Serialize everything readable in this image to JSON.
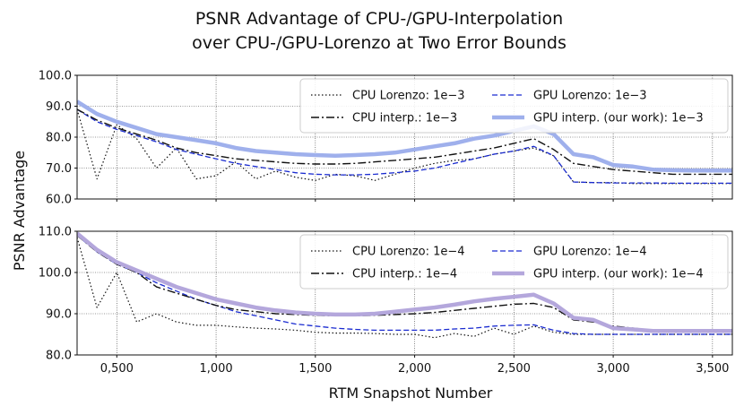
{
  "figure": {
    "title_line1": "PSNR Advantage of CPU-/GPU-Interpolation",
    "title_line2": "over CPU-/GPU-Lorenzo at Two Error Bounds",
    "xlabel": "RTM Snapshot Number",
    "ylabel": "PSNR Advantage"
  },
  "styles": {
    "cpu_lorenzo": {
      "color": "#111111",
      "dash": "1.5,2.5",
      "width": 1.2
    },
    "cpu_interp": {
      "color": "#111111",
      "dash": "9,3,2,3",
      "width": 1.4
    },
    "gpu_lorenzo": {
      "color": "#1a2bd0",
      "dash": "6,3",
      "width": 1.3
    },
    "gpu_interp_top": {
      "color": "#9fb0ec",
      "dash": "",
      "width": 4.5
    },
    "gpu_interp_bottom": {
      "color": "#b4a7dc",
      "dash": "",
      "width": 4.5
    }
  },
  "chart_data": [
    {
      "type": "line",
      "panel": "top",
      "title": "PSNR Advantage of CPU-/GPU-Interpolation over CPU-/GPU-Lorenzo at Two Error Bounds",
      "xlabel": "RTM Snapshot Number",
      "ylabel": "PSNR Advantage",
      "xlim": [
        300,
        3600
      ],
      "ylim": [
        60,
        100
      ],
      "yticks": [
        60,
        70,
        80,
        90,
        100
      ],
      "ytick_labels": [
        "60.0",
        "70.0",
        "80.0",
        "90.0",
        "100.0"
      ],
      "xticks": [
        500,
        1000,
        1500,
        2000,
        2500,
        3000,
        3500
      ],
      "xtick_labels": [
        "0,500",
        "1,000",
        "1,500",
        "2,000",
        "2,500",
        "3,000",
        "3,500"
      ],
      "grid": true,
      "legend": "top-right",
      "x": [
        300,
        400,
        500,
        600,
        700,
        800,
        900,
        1000,
        1100,
        1200,
        1300,
        1400,
        1500,
        1600,
        1700,
        1800,
        1900,
        2000,
        2100,
        2200,
        2300,
        2400,
        2500,
        2600,
        2700,
        2800,
        2900,
        3000,
        3100,
        3200,
        3300,
        3400,
        3500,
        3600
      ],
      "series": [
        {
          "name": "CPU Lorenzo: 1e−3",
          "style": "cpu_lorenzo",
          "values": [
            89,
            66.5,
            84,
            79.5,
            70,
            76.5,
            66.5,
            67.5,
            72,
            66.5,
            69,
            67,
            66,
            68,
            67.5,
            66,
            68,
            70,
            71.5,
            72.5,
            73,
            74.5,
            75.5,
            76.5,
            74,
            65.5,
            65.3,
            65.3,
            65,
            65,
            65,
            65,
            65,
            65
          ]
        },
        {
          "name": "GPU Lorenzo: 1e−3",
          "style": "gpu_lorenzo",
          "values": [
            89,
            85,
            82.5,
            80.5,
            78.5,
            76,
            74.5,
            73,
            71.5,
            70.5,
            69.5,
            68.5,
            68,
            67.8,
            67.8,
            68,
            68.5,
            69,
            70,
            71.5,
            73,
            74.5,
            75.5,
            77,
            74,
            65.5,
            65.3,
            65.2,
            65.2,
            65.2,
            65.1,
            65.1,
            65.1,
            65.1
          ]
        },
        {
          "name": "CPU interp.: 1e−3",
          "style": "cpu_interp",
          "values": [
            89,
            85.5,
            83,
            81,
            79,
            76.5,
            75,
            74,
            73,
            72.5,
            72,
            71.5,
            71.3,
            71.3,
            71.5,
            72,
            72.5,
            73,
            73.5,
            74.5,
            75.5,
            76.5,
            78,
            79.5,
            76,
            71.5,
            70.5,
            69.5,
            69,
            68.5,
            68,
            68,
            68,
            68
          ]
        },
        {
          "name": "GPU interp. (our work): 1e−3",
          "style": "gpu_interp_top",
          "values": [
            91.5,
            87.5,
            85,
            83,
            81,
            80,
            79,
            78,
            76.5,
            75.5,
            75,
            74.5,
            74.2,
            74,
            74.2,
            74.5,
            75,
            76,
            77,
            78,
            79.5,
            80.5,
            82,
            83.5,
            81,
            74.5,
            73.5,
            71,
            70.5,
            69.5,
            69.3,
            69.2,
            69.2,
            69.2
          ]
        }
      ]
    },
    {
      "type": "line",
      "panel": "bottom",
      "xlabel": "RTM Snapshot Number",
      "ylabel": "PSNR Advantage",
      "xlim": [
        300,
        3600
      ],
      "ylim": [
        80,
        110
      ],
      "yticks": [
        80,
        90,
        100,
        110
      ],
      "ytick_labels": [
        "80.0",
        "90.0",
        "100.0",
        "110.0"
      ],
      "xticks": [
        500,
        1000,
        1500,
        2000,
        2500,
        3000,
        3500
      ],
      "xtick_labels": [
        "0,500",
        "1,000",
        "1,500",
        "2,000",
        "2,500",
        "3,000",
        "3,500"
      ],
      "grid": true,
      "legend": "top-right",
      "x": [
        300,
        400,
        500,
        600,
        700,
        800,
        900,
        1000,
        1100,
        1200,
        1300,
        1400,
        1500,
        1600,
        1700,
        1800,
        1900,
        2000,
        2100,
        2200,
        2300,
        2400,
        2500,
        2600,
        2700,
        2800,
        2900,
        3000,
        3100,
        3200,
        3300,
        3400,
        3500,
        3600
      ],
      "series": [
        {
          "name": "CPU Lorenzo: 1e−4",
          "style": "cpu_lorenzo",
          "values": [
            108.5,
            91.5,
            100,
            88,
            90,
            88,
            87.2,
            87.2,
            86.8,
            86.5,
            86.3,
            86,
            85.5,
            85.3,
            85.3,
            85.2,
            85,
            85,
            84.2,
            85.2,
            84.5,
            86.5,
            85,
            87,
            85.5,
            85,
            85,
            85,
            85,
            85,
            85,
            85,
            85,
            85
          ]
        },
        {
          "name": "GPU Lorenzo: 1e−4",
          "style": "gpu_lorenzo",
          "values": [
            109,
            105,
            102,
            100,
            97.5,
            95.5,
            93.5,
            92,
            90.5,
            89.5,
            88.5,
            87.5,
            87,
            86.5,
            86.2,
            86,
            86,
            86,
            86,
            86.3,
            86.5,
            87,
            87.2,
            87.3,
            86,
            85.2,
            85,
            85,
            85,
            85,
            85,
            85,
            85,
            85
          ]
        },
        {
          "name": "CPU interp.: 1e−4",
          "style": "cpu_interp",
          "values": [
            109,
            105,
            102,
            100,
            96.5,
            95,
            93.5,
            92,
            91,
            90.5,
            90,
            89.8,
            89.6,
            89.5,
            89.5,
            89.6,
            89.8,
            90,
            90.3,
            90.8,
            91.3,
            91.8,
            92.3,
            92.5,
            91.5,
            88.5,
            88,
            87,
            86.5,
            86,
            85.8,
            85.5,
            85.5,
            85.5
          ]
        },
        {
          "name": "GPU interp. (our work): 1e−4",
          "style": "gpu_interp_bottom",
          "values": [
            109.5,
            105.5,
            102.5,
            100.5,
            98.5,
            96.5,
            95,
            93.5,
            92.5,
            91.5,
            90.8,
            90.3,
            90,
            89.8,
            89.8,
            90,
            90.5,
            91,
            91.5,
            92.2,
            93,
            93.6,
            94.1,
            94.6,
            92.5,
            89,
            88.5,
            86.5,
            86.2,
            85.8,
            85.8,
            85.8,
            85.8,
            85.8
          ]
        }
      ]
    }
  ]
}
